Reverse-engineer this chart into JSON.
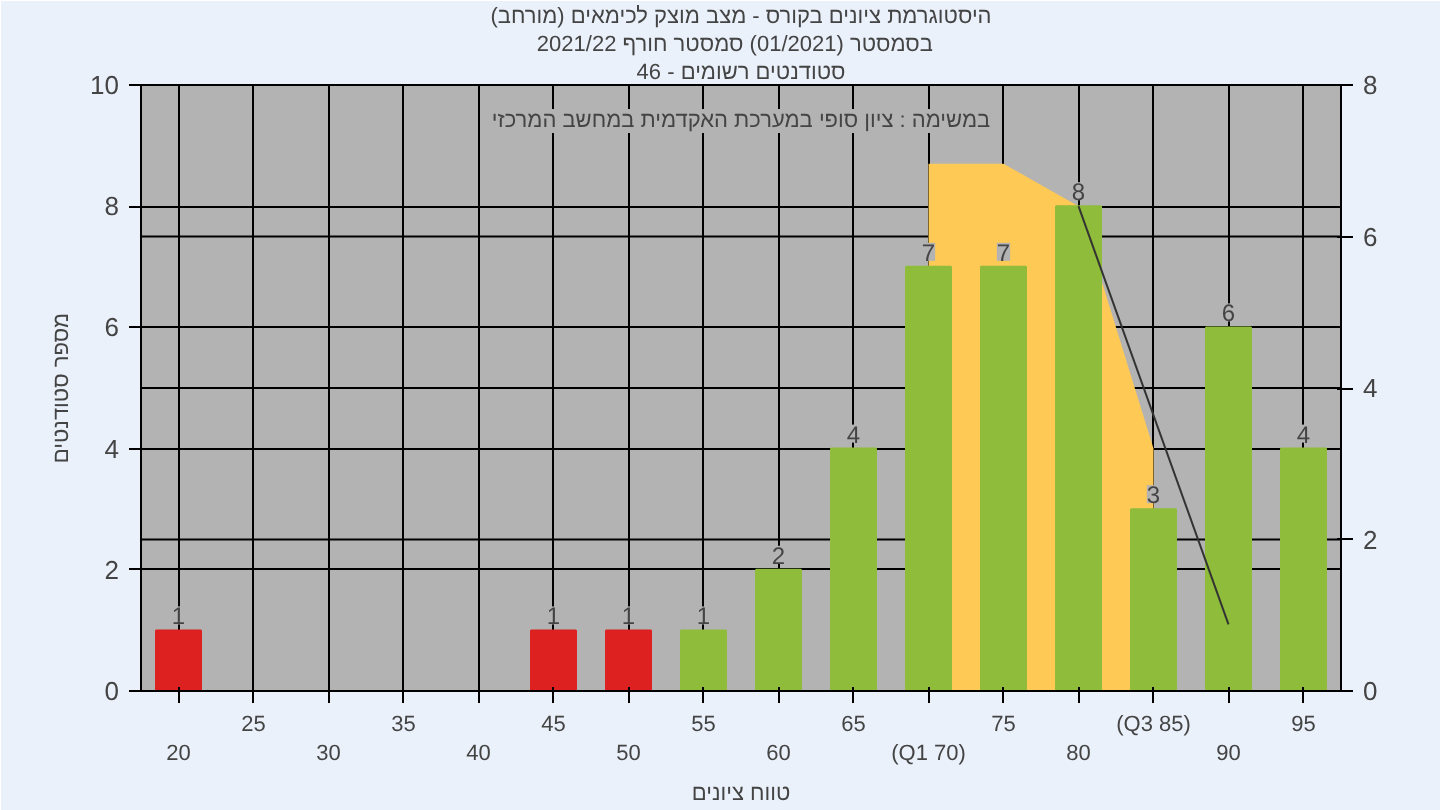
{
  "chart_data": {
    "type": "bar",
    "title": "(היסטוגרמת ציונים בקורס - מצב מוצק לכימאים (מורחב",
    "subtitle": "בסמסטר  (01/2021)  סמסטר חורף 2021/22",
    "xlabel": "טווח ציונים",
    "ylabel": "מספר סטודנטים",
    "annotations": [
      "סטודנטים רשומים - 46",
      "במשימה : ציון סופי במערכת האקדמית במחשב המרכזי"
    ],
    "categories": [
      "20",
      "25",
      "30",
      "35",
      "40",
      "45",
      "50",
      "55",
      "60",
      "65",
      "(Q1 70)",
      "75",
      "80",
      "(Q3 85)",
      "90",
      "95"
    ],
    "series": [
      {
        "type": "area",
        "color": "#ffc955",
        "values": [
          null,
          null,
          null,
          null,
          null,
          null,
          null,
          null,
          null,
          null,
          8.7,
          8.7,
          8,
          4,
          null,
          null
        ]
      },
      {
        "colors": [
          "#dd2020",
          "#8fbc3a",
          "#8fbc3a",
          "#8fbc3a",
          "#8fbc3a",
          "#dd2020",
          "#dd2020",
          "#8fbc3a",
          "#8fbc3a",
          "#8fbc3a",
          "#8fbc3a",
          "#8fbc3a",
          "#8fbc3a",
          "#8fbc3a",
          "#8fbc3a",
          "#8fbc3a"
        ],
        "values": [
          1,
          0,
          0,
          0,
          0,
          1,
          1,
          1,
          2,
          4,
          7,
          7,
          8,
          3,
          6,
          4
        ],
        "value_labels": [
          "1",
          null,
          null,
          null,
          null,
          "1",
          "1",
          "1",
          "2",
          "4",
          "7",
          "7",
          "8",
          "3",
          "6",
          "4"
        ]
      },
      {
        "type": "line",
        "color": "#333333",
        "values": [
          null,
          null,
          null,
          null,
          null,
          null,
          null,
          null,
          null,
          null,
          null,
          null,
          8,
          null,
          1.1,
          null
        ]
      }
    ],
    "ylim": [
      0,
      10
    ],
    "yticks": [
      0,
      2,
      4,
      6,
      8,
      10
    ],
    "y2lim": [
      0,
      8
    ],
    "y2ticks": [
      0,
      2,
      4,
      6,
      8
    ],
    "grid": true
  }
}
